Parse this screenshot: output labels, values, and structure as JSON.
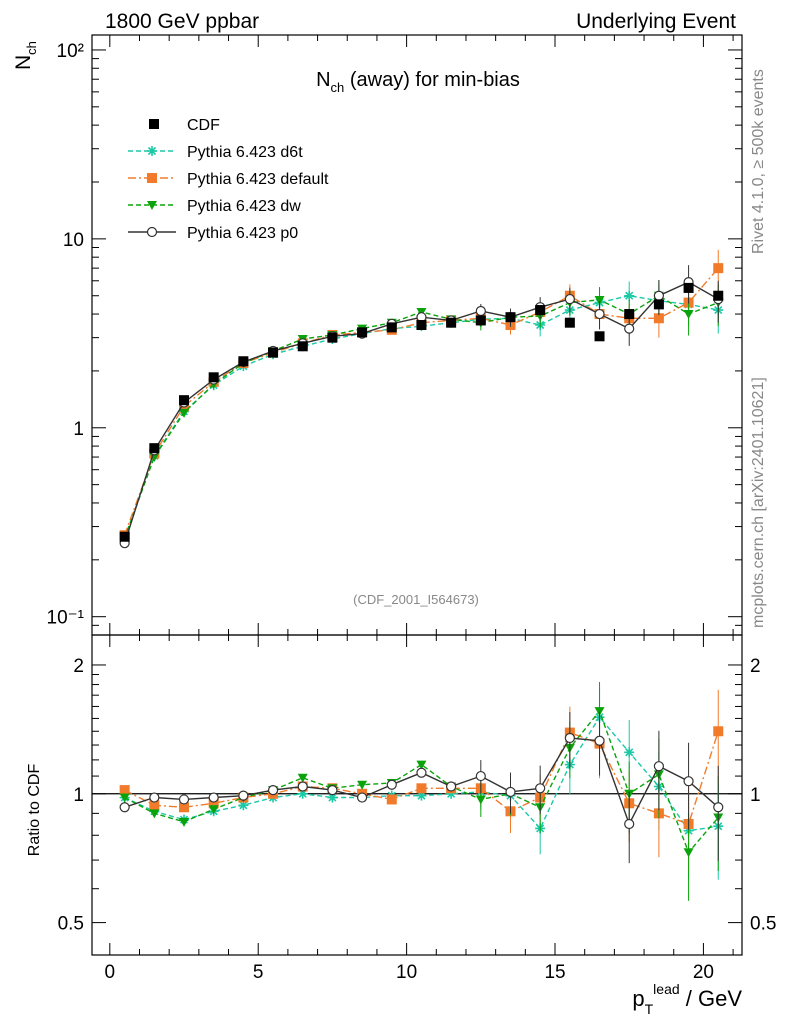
{
  "header": {
    "left": "1800 GeV ppbar",
    "right": "Underlying Event"
  },
  "plot": {
    "title_main": "N",
    "title_sub": "ch",
    "title_rest": " (away) for min-bias",
    "analysis": "(CDF_2001_I564673)",
    "y_main": "N",
    "y_sub": "ch",
    "ratio_ylabel": "Ratio to CDF",
    "x_main": "p",
    "x_sub": "T",
    "x_sup": "lead",
    "x_rest": " / GeV",
    "side_top": "Rivet 4.1.0, ≥ 500k events",
    "side_bottom": "mcplots.cern.ch [arXiv:2401.10621]"
  },
  "chart_data": {
    "type": "line",
    "title": "Nch (away) for min-bias",
    "xlabel": "pT lead / GeV",
    "ylabel": "Nch",
    "xlim": [
      -0.6,
      21.3
    ],
    "ylim": [
      0.08,
      120
    ],
    "yscale": "log",
    "ratio_ylabel": "Ratio to CDF",
    "ratio_ylim": [
      0.42,
      2.35
    ],
    "x_ticks": [
      "0",
      "5",
      "10",
      "15",
      "20"
    ],
    "y_ticks": [
      "10⁻¹",
      "1",
      "10",
      "10²"
    ],
    "ratio_ticks": [
      "0.5",
      "1",
      "2"
    ],
    "x": [
      0.5,
      1.5,
      2.5,
      3.5,
      4.5,
      5.5,
      6.5,
      7.5,
      8.5,
      9.5,
      10.5,
      11.5,
      12.5,
      13.5,
      14.5,
      15.5,
      16.5,
      17.5,
      18.5,
      19.5,
      20.5
    ],
    "legend_position": "top-left",
    "series": [
      {
        "name": "CDF",
        "color": "#000000",
        "marker": "square",
        "values": [
          0.265,
          0.78,
          1.4,
          1.85,
          2.25,
          2.5,
          2.7,
          3.0,
          3.2,
          3.4,
          3.5,
          3.6,
          3.7,
          3.85,
          4.2,
          3.6,
          3.05,
          4.0,
          4.5,
          5.5,
          5.0
        ]
      },
      {
        "name": "Pythia 6.423 d6t",
        "color": "#1ac9a6",
        "marker": "star",
        "values": [
          0.26,
          0.71,
          1.22,
          1.68,
          2.12,
          2.45,
          2.7,
          2.95,
          3.15,
          3.35,
          3.45,
          3.6,
          3.75,
          3.8,
          3.5,
          4.2,
          4.6,
          5.0,
          4.7,
          4.5,
          4.2
        ],
        "ratio": [
          0.98,
          0.91,
          0.87,
          0.91,
          0.94,
          0.98,
          1.0,
          0.98,
          0.98,
          0.99,
          0.99,
          1.0,
          1.01,
          0.99,
          0.83,
          1.17,
          1.51,
          1.25,
          1.04,
          0.82,
          0.84
        ]
      },
      {
        "name": "Pythia 6.423 default",
        "color": "#f27b2b",
        "marker": "square",
        "values": [
          0.27,
          0.73,
          1.3,
          1.75,
          2.2,
          2.5,
          2.8,
          3.1,
          3.2,
          3.3,
          3.6,
          3.7,
          3.8,
          3.5,
          4.1,
          5.0,
          4.0,
          3.8,
          3.8,
          4.6,
          7.0
        ],
        "ratio": [
          1.02,
          0.94,
          0.93,
          0.95,
          0.98,
          1.0,
          1.04,
          1.03,
          1.0,
          0.97,
          1.03,
          1.03,
          1.03,
          0.91,
          0.98,
          1.39,
          1.31,
          0.95,
          0.9,
          0.85,
          1.4
        ]
      },
      {
        "name": "Pythia 6.423 dw",
        "color": "#0ba30b",
        "marker": "triangle-down",
        "values": [
          0.26,
          0.7,
          1.2,
          1.7,
          2.2,
          2.55,
          2.95,
          3.1,
          3.35,
          3.6,
          4.1,
          3.75,
          3.6,
          3.85,
          3.9,
          4.6,
          4.75,
          4.0,
          5.0,
          4.0,
          4.6
        ],
        "ratio": [
          0.98,
          0.9,
          0.86,
          0.92,
          0.98,
          1.02,
          1.09,
          1.03,
          1.05,
          1.06,
          1.17,
          1.04,
          0.97,
          1.0,
          0.93,
          1.28,
          1.56,
          1.0,
          1.11,
          0.73,
          0.88
        ]
      },
      {
        "name": "Pythia 6.423 p0",
        "color": "#333333",
        "marker": "circle-open",
        "values": [
          0.245,
          0.76,
          1.36,
          1.8,
          2.23,
          2.55,
          2.8,
          3.05,
          3.15,
          3.55,
          3.85,
          3.7,
          4.15,
          3.85,
          4.35,
          4.8,
          4.0,
          3.35,
          5.0,
          5.9,
          4.8
        ],
        "ratio": [
          0.93,
          0.98,
          0.97,
          0.98,
          0.99,
          1.02,
          1.04,
          1.02,
          0.98,
          1.05,
          1.12,
          1.04,
          1.1,
          1.01,
          1.03,
          1.35,
          1.33,
          0.85,
          1.16,
          1.07,
          0.93
        ]
      }
    ]
  }
}
